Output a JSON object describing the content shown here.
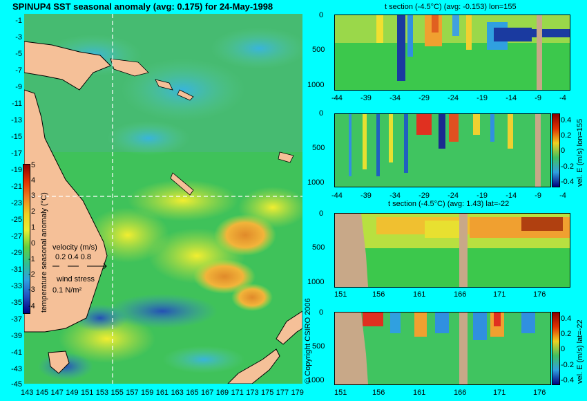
{
  "map": {
    "title": "SPINUP4 SST seasonal anomaly (avg: 0.175) for 24-May-1998",
    "lat_labels": [
      "-1",
      "-3",
      "-5",
      "-7",
      "-9",
      "-11",
      "-13",
      "-15",
      "-17",
      "-19",
      "-21",
      "-23",
      "-25",
      "-27",
      "-29",
      "-31",
      "-33",
      "-35",
      "-37",
      "-39",
      "-41",
      "-43",
      "-45"
    ],
    "lon_labels": [
      "143",
      "145",
      "147",
      "149",
      "151",
      "153",
      "155",
      "157",
      "159",
      "161",
      "163",
      "165",
      "167",
      "169",
      "171",
      "173",
      "175",
      "177",
      "179"
    ],
    "colorbar_ticks": [
      "5",
      "4",
      "3",
      "2",
      "1",
      "0",
      "-1",
      "-2",
      "-3",
      "-4"
    ],
    "colorbar_label": "temperature seasonal anomaly (°C)",
    "velocity_label": "velocity (m/s)",
    "velocity_values": "0.2 0.4 0.8",
    "wind_label": "wind stress",
    "wind_value": "0.1 N/m²"
  },
  "panel1": {
    "title": "t section (-4.5°C) (avg: -0.153) lon=155",
    "y_ticks": [
      "0",
      "500",
      "1000"
    ],
    "x_ticks": [
      "-44",
      "-39",
      "-34",
      "-29",
      "-24",
      "-19",
      "-14",
      "-9",
      "-4"
    ]
  },
  "panel2": {
    "y_ticks": [
      "0",
      "500",
      "1000"
    ],
    "x_ticks": [
      "-44",
      "-39",
      "-34",
      "-29",
      "-24",
      "-19",
      "-14",
      "-9",
      "-4"
    ],
    "cbar_ticks": [
      "0.4",
      "0.2",
      "0",
      "-0.2",
      "-0.4"
    ],
    "cbar_label": "vel. E (m/s) lon=155"
  },
  "panel3": {
    "title": "t section (-4.5°C) (avg: 1.43) lat=-22",
    "y_ticks": [
      "0",
      "500",
      "1000"
    ],
    "x_ticks": [
      "151",
      "156",
      "161",
      "166",
      "171",
      "176"
    ]
  },
  "panel4": {
    "y_ticks": [
      "0",
      "500",
      "1000"
    ],
    "x_ticks": [
      "151",
      "156",
      "161",
      "166",
      "171",
      "176"
    ],
    "cbar_ticks": [
      "0.4",
      "0.2",
      "0",
      "-0.2",
      "-0.4"
    ],
    "cbar_label": "vel. E (m/s) lat=-22"
  },
  "copyright": "© Copyright CSIRO 2006"
}
